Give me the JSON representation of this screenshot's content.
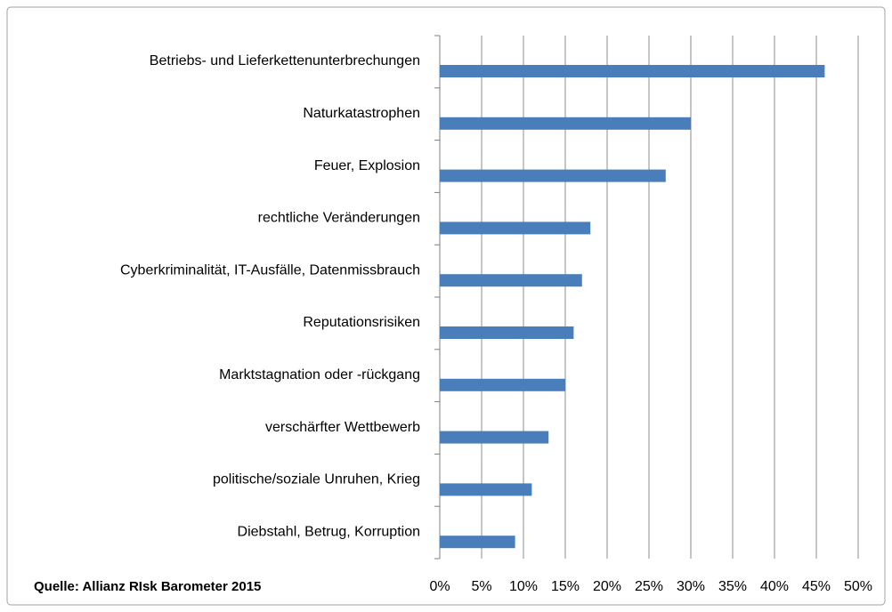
{
  "chart_data": {
    "type": "bar",
    "orientation": "horizontal",
    "categories": [
      "Betriebs- und Lieferkettenunterbrechungen",
      "Naturkatastrophen",
      "Feuer, Explosion",
      "rechtliche Veränderungen",
      "Cyberkriminalität, IT-Ausfälle, Datenmissbrauch",
      "Reputationsrisiken",
      "Marktstagnation oder -rückgang",
      "verschärfter Wettbewerb",
      "politische/soziale Unruhen, Krieg",
      "Diebstahl, Betrug, Korruption"
    ],
    "values": [
      46,
      30,
      27,
      18,
      17,
      16,
      15,
      13,
      11,
      9
    ],
    "color": "#4a7ebb",
    "xlim": [
      0,
      50
    ],
    "xticks": [
      {
        "value": 0,
        "label": "0%"
      },
      {
        "value": 5,
        "label": "5%"
      },
      {
        "value": 10,
        "label": "10%"
      },
      {
        "value": 15,
        "label": "15%"
      },
      {
        "value": 20,
        "label": "20%"
      },
      {
        "value": 25,
        "label": "25%"
      },
      {
        "value": 30,
        "label": "30%"
      },
      {
        "value": 35,
        "label": "35%"
      },
      {
        "value": 40,
        "label": "40%"
      },
      {
        "value": 45,
        "label": "45%"
      },
      {
        "value": 50,
        "label": "50%"
      }
    ],
    "grid": true,
    "source": "Quelle: Allianz RIsk Barometer 2015"
  }
}
